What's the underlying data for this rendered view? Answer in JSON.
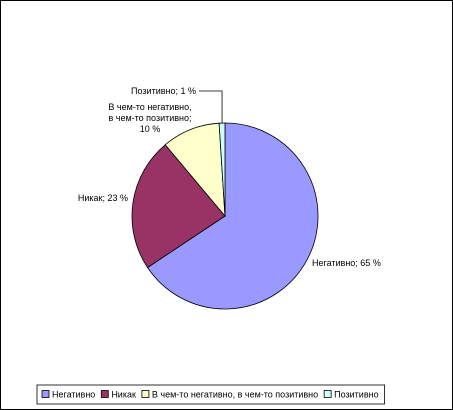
{
  "chart_data": {
    "type": "pie",
    "categories": [
      "Негативно",
      "Никак",
      "В чем-то негативно, в чем-то позитивно",
      "Позитивно"
    ],
    "values": [
      65,
      23,
      10,
      1
    ],
    "value_labels": [
      "Негативно; 65 %",
      "Никак; 23 %",
      "В чем-то негативно,\nв чем-то позитивно;\n10 %",
      "Позитивно; 1 %"
    ],
    "colors": [
      "#9999ff",
      "#993366",
      "#ffffcc",
      "#ccffff"
    ],
    "legend": "bottom"
  }
}
